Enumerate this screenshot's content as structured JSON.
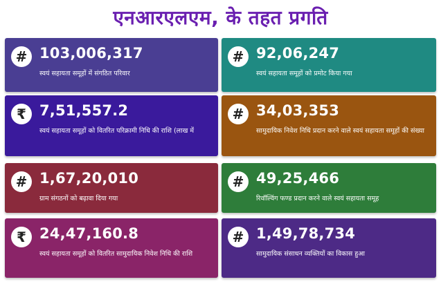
{
  "title": "एनआरएलएम, के तहत प्रगति",
  "cards": [
    {
      "icon": "hash-icon",
      "symbol": "#",
      "value": "103,006,317",
      "label": "स्वयं सहायता समूहों में संगठित परिवार",
      "color": "#4a3e93"
    },
    {
      "icon": "hash-icon",
      "symbol": "#",
      "value": "92,06,247",
      "label": "स्वयं सहायता समूहों को प्रमोट किया गया",
      "color": "#1f8a82"
    },
    {
      "icon": "rupee-icon",
      "symbol": "₹",
      "value": "7,51,557.2",
      "label": "स्वयं सहायता समूहों को वितरित परिक्रामी निधि की राशि (लाख में",
      "color": "#3a1a9c"
    },
    {
      "icon": "hash-icon",
      "symbol": "#",
      "value": "34,03,353",
      "label": "सामुदायिक निवेश निधि प्रदान करने वाले स्वयं सहायता समूहों की संख्या",
      "color": "#9a5510"
    },
    {
      "icon": "hash-icon",
      "symbol": "#",
      "value": "1,67,20,010",
      "label": "ग्राम संगठनों को बढ़ावा दिया गया",
      "color": "#8a2a3c"
    },
    {
      "icon": "hash-icon",
      "symbol": "#",
      "value": "49,25,466",
      "label": "रिवॉल्विंग फण्ड प्रदान करने वाले स्वयं सहायता समूह",
      "color": "#2e7d3a"
    },
    {
      "icon": "rupee-icon",
      "symbol": "₹",
      "value": "24,47,160.8",
      "label": "स्वयं सहायता समूहों को वितरित सामुदायिक निवेश निधि की राशि",
      "color": "#8a2468"
    },
    {
      "icon": "hash-icon",
      "symbol": "#",
      "value": "1,49,78,734",
      "label": "सामुदायिक संसाधन व्यक्तियों का विकास हुआ",
      "color": "#4d2a86"
    }
  ]
}
